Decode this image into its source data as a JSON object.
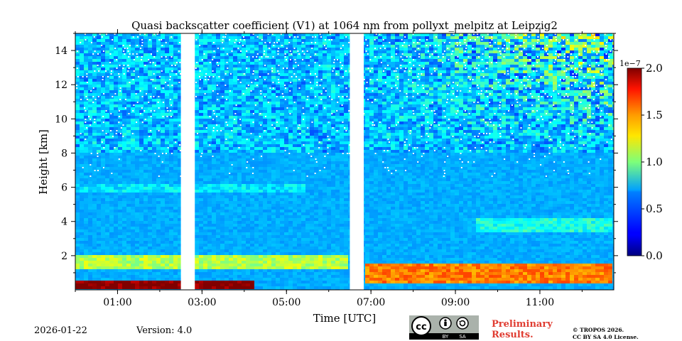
{
  "chart_data": {
    "type": "heatmap",
    "title": "Quasi backscatter coefficient (V1) at 1064 nm from pollyxt_melpitz at Leipzig2",
    "xlabel": "Time [UTC]",
    "ylabel": "Height [km]",
    "xlim_hours": [
      0.0,
      12.75
    ],
    "ylim_km": [
      0.0,
      15.0
    ],
    "x_ticks": [
      {
        "hour": 1,
        "label": "01:00"
      },
      {
        "hour": 3,
        "label": "03:00"
      },
      {
        "hour": 5,
        "label": "05:00"
      },
      {
        "hour": 7,
        "label": "07:00"
      },
      {
        "hour": 9,
        "label": "09:00"
      },
      {
        "hour": 11,
        "label": "11:00"
      }
    ],
    "y_ticks": [
      {
        "km": 2,
        "label": "2"
      },
      {
        "km": 4,
        "label": "4"
      },
      {
        "km": 6,
        "label": "6"
      },
      {
        "km": 8,
        "label": "8"
      },
      {
        "km": 10,
        "label": "10"
      },
      {
        "km": 12,
        "label": "12"
      },
      {
        "km": 14,
        "label": "14"
      }
    ],
    "data_gaps_hours": [
      [
        2.5,
        2.83
      ],
      [
        6.5,
        6.83
      ]
    ],
    "features": [
      {
        "name": "aerosol layer",
        "t_start": 0.0,
        "t_end": 6.5,
        "h_bottom": 1.2,
        "h_top": 2.0,
        "level": 0.55
      },
      {
        "name": "aerosol layer",
        "t_start": 6.83,
        "t_end": 12.75,
        "h_bottom": 0.4,
        "h_top": 1.5,
        "level": 0.75
      },
      {
        "name": "elevated layer",
        "t_start": 0.0,
        "t_end": 5.5,
        "h_bottom": 5.7,
        "h_top": 6.2,
        "level": 0.35
      },
      {
        "name": "elevated layer",
        "t_start": 9.5,
        "t_end": 12.75,
        "h_bottom": 3.4,
        "h_top": 4.2,
        "level": 0.4
      },
      {
        "name": "near-ground saturation",
        "t_start": 0.0,
        "t_end": 4.2,
        "h_bottom": 0.0,
        "h_top": 0.6,
        "level": 1.0
      }
    ],
    "colorbar": {
      "colormap": "jet",
      "vmin": 0.0,
      "vmax": 2.0,
      "exponent_label": "1e−7",
      "ticks": [
        {
          "value": 0.0,
          "label": "0.0"
        },
        {
          "value": 0.5,
          "label": "0.5"
        },
        {
          "value": 1.0,
          "label": "1.0"
        },
        {
          "value": 1.5,
          "label": "1.5"
        },
        {
          "value": 2.0,
          "label": "2.0"
        }
      ]
    }
  },
  "footer": {
    "date": "2026-01-22",
    "version": "Version: 4.0",
    "preliminary": "Preliminary Results.",
    "license_badge": {
      "cc": "cc",
      "by": "BY",
      "sa": "SA"
    },
    "copyright_line1": "© TROPOS 2026.",
    "copyright_line2": "CC BY SA 4.0 License."
  }
}
